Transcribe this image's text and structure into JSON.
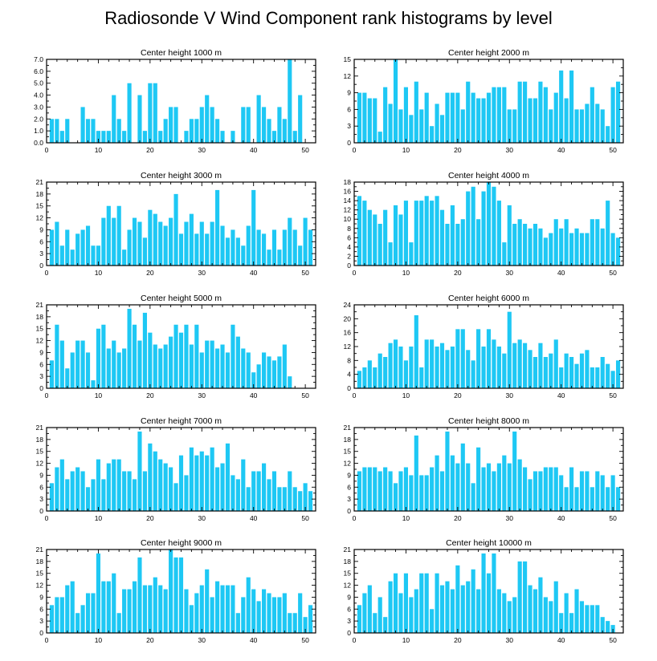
{
  "title": "Radiosonde V Wind Component rank histograms by level",
  "colors": {
    "bar": "#1ec8f4",
    "frame": "#000000",
    "background": "#ffffff"
  },
  "chart_data": [
    {
      "type": "bar",
      "title": "Center height 1000 m",
      "x": [
        1,
        2,
        3,
        4,
        5,
        6,
        7,
        8,
        9,
        10,
        11,
        12,
        13,
        14,
        15,
        16,
        17,
        18,
        19,
        20,
        21,
        22,
        23,
        24,
        25,
        26,
        27,
        28,
        29,
        30,
        31,
        32,
        33,
        34,
        35,
        36,
        37,
        38,
        39,
        40,
        41,
        42,
        43,
        44,
        45,
        46,
        47,
        48,
        49,
        50,
        51
      ],
      "values": [
        2,
        2,
        1,
        2,
        0,
        0,
        3,
        2,
        2,
        1,
        1,
        1,
        4,
        2,
        1,
        5,
        0,
        4,
        1,
        5,
        5,
        1,
        2,
        3,
        3,
        0,
        1,
        2,
        2,
        3,
        4,
        3,
        2,
        1,
        0,
        1,
        0,
        3,
        3,
        0,
        4,
        3,
        2,
        1,
        3,
        2,
        7,
        1,
        4,
        0,
        0
      ],
      "xlim": [
        0,
        52
      ],
      "ylim": [
        0,
        7
      ],
      "xticks": [
        0,
        10,
        20,
        30,
        40,
        50
      ],
      "yticks": [
        0,
        1,
        2,
        3,
        4,
        5,
        6,
        7
      ],
      "ytick_labels": [
        "0.0",
        "1.0",
        "2.0",
        "3.0",
        "4.0",
        "5.0",
        "6.0",
        "7.0"
      ]
    },
    {
      "type": "bar",
      "title": "Center height 2000 m",
      "x": [
        1,
        2,
        3,
        4,
        5,
        6,
        7,
        8,
        9,
        10,
        11,
        12,
        13,
        14,
        15,
        16,
        17,
        18,
        19,
        20,
        21,
        22,
        23,
        24,
        25,
        26,
        27,
        28,
        29,
        30,
        31,
        32,
        33,
        34,
        35,
        36,
        37,
        38,
        39,
        40,
        41,
        42,
        43,
        44,
        45,
        46,
        47,
        48,
        49,
        50,
        51
      ],
      "values": [
        9,
        9,
        8,
        8,
        2,
        10,
        7,
        15,
        6,
        10,
        5,
        11,
        6,
        9,
        3,
        7,
        5,
        9,
        9,
        9,
        6,
        11,
        9,
        8,
        8,
        9,
        10,
        10,
        10,
        6,
        6,
        11,
        11,
        8,
        8,
        11,
        10,
        6,
        9,
        13,
        8,
        13,
        6,
        6,
        7,
        10,
        7,
        6,
        3,
        10,
        11
      ],
      "xlim": [
        0,
        52
      ],
      "ylim": [
        0,
        15
      ],
      "xticks": [
        0,
        10,
        20,
        30,
        40,
        50
      ],
      "yticks": [
        0,
        3,
        6,
        9,
        12,
        15
      ],
      "ytick_labels": [
        "0",
        "3",
        "6",
        "9",
        "12",
        "15"
      ]
    },
    {
      "type": "bar",
      "title": "Center height 3000 m",
      "x": [
        1,
        2,
        3,
        4,
        5,
        6,
        7,
        8,
        9,
        10,
        11,
        12,
        13,
        14,
        15,
        16,
        17,
        18,
        19,
        20,
        21,
        22,
        23,
        24,
        25,
        26,
        27,
        28,
        29,
        30,
        31,
        32,
        33,
        34,
        35,
        36,
        37,
        38,
        39,
        40,
        41,
        42,
        43,
        44,
        45,
        46,
        47,
        48,
        49,
        50,
        51
      ],
      "values": [
        9,
        11,
        5,
        9,
        4,
        8,
        9,
        10,
        5,
        5,
        12,
        15,
        12,
        15,
        4,
        9,
        12,
        11,
        7,
        14,
        13,
        11,
        10,
        12,
        18,
        8,
        11,
        13,
        8,
        11,
        8,
        11,
        19,
        10,
        7,
        9,
        7,
        5,
        10,
        19,
        9,
        8,
        4,
        9,
        4,
        9,
        12,
        9,
        5,
        12,
        9
      ],
      "xlim": [
        0,
        52
      ],
      "ylim": [
        0,
        21
      ],
      "xticks": [
        0,
        10,
        20,
        30,
        40,
        50
      ],
      "yticks": [
        0,
        3,
        6,
        9,
        12,
        15,
        18,
        21
      ],
      "ytick_labels": [
        "0",
        "3",
        "6",
        "9",
        "12",
        "15",
        "18",
        "21"
      ]
    },
    {
      "type": "bar",
      "title": "Center height 4000 m",
      "x": [
        1,
        2,
        3,
        4,
        5,
        6,
        7,
        8,
        9,
        10,
        11,
        12,
        13,
        14,
        15,
        16,
        17,
        18,
        19,
        20,
        21,
        22,
        23,
        24,
        25,
        26,
        27,
        28,
        29,
        30,
        31,
        32,
        33,
        34,
        35,
        36,
        37,
        38,
        39,
        40,
        41,
        42,
        43,
        44,
        45,
        46,
        47,
        48,
        49,
        50,
        51
      ],
      "values": [
        15,
        14,
        12,
        11,
        9,
        12,
        5,
        13,
        11,
        14,
        5,
        14,
        14,
        15,
        14,
        15,
        12,
        9,
        13,
        9,
        10,
        16,
        17,
        10,
        16,
        18,
        17,
        14,
        5,
        13,
        9,
        10,
        9,
        8,
        9,
        8,
        6,
        7,
        10,
        8,
        10,
        7,
        8,
        7,
        7,
        10,
        10,
        8,
        14,
        7,
        6
      ],
      "xlim": [
        0,
        52
      ],
      "ylim": [
        0,
        18
      ],
      "xticks": [
        0,
        10,
        20,
        30,
        40,
        50
      ],
      "yticks": [
        0,
        2,
        4,
        6,
        8,
        10,
        12,
        14,
        16,
        18
      ],
      "ytick_labels": [
        "0",
        "2",
        "4",
        "6",
        "8",
        "10",
        "12",
        "14",
        "16",
        "18"
      ]
    },
    {
      "type": "bar",
      "title": "Center height 5000 m",
      "x": [
        1,
        2,
        3,
        4,
        5,
        6,
        7,
        8,
        9,
        10,
        11,
        12,
        13,
        14,
        15,
        16,
        17,
        18,
        19,
        20,
        21,
        22,
        23,
        24,
        25,
        26,
        27,
        28,
        29,
        30,
        31,
        32,
        33,
        34,
        35,
        36,
        37,
        38,
        39,
        40,
        41,
        42,
        43,
        44,
        45,
        46,
        47,
        48,
        49,
        50,
        51
      ],
      "values": [
        7,
        16,
        12,
        5,
        9,
        12,
        12,
        9,
        2,
        15,
        16,
        10,
        12,
        9,
        10,
        20,
        16,
        12,
        19,
        14,
        11,
        10,
        11,
        13,
        16,
        14,
        16,
        11,
        16,
        9,
        12,
        12,
        10,
        11,
        9,
        16,
        13,
        10,
        9,
        4,
        6,
        9,
        8,
        7,
        8,
        11,
        3,
        0,
        0,
        0,
        0
      ],
      "xlim": [
        0,
        52
      ],
      "ylim": [
        0,
        21
      ],
      "xticks": [
        0,
        10,
        20,
        30,
        40,
        50
      ],
      "yticks": [
        0,
        3,
        6,
        9,
        12,
        15,
        18,
        21
      ],
      "ytick_labels": [
        "0",
        "3",
        "6",
        "9",
        "12",
        "15",
        "18",
        "21"
      ]
    },
    {
      "type": "bar",
      "title": "Center height 6000 m",
      "x": [
        1,
        2,
        3,
        4,
        5,
        6,
        7,
        8,
        9,
        10,
        11,
        12,
        13,
        14,
        15,
        16,
        17,
        18,
        19,
        20,
        21,
        22,
        23,
        24,
        25,
        26,
        27,
        28,
        29,
        30,
        31,
        32,
        33,
        34,
        35,
        36,
        37,
        38,
        39,
        40,
        41,
        42,
        43,
        44,
        45,
        46,
        47,
        48,
        49,
        50,
        51
      ],
      "values": [
        5,
        6,
        8,
        6,
        10,
        9,
        13,
        14,
        12,
        8,
        12,
        21,
        6,
        14,
        14,
        12,
        13,
        11,
        12,
        17,
        17,
        11,
        8,
        17,
        12,
        17,
        14,
        12,
        10,
        22,
        13,
        14,
        13,
        11,
        9,
        13,
        9,
        10,
        14,
        6,
        10,
        9,
        7,
        10,
        11,
        6,
        6,
        9,
        7,
        5,
        8
      ],
      "xlim": [
        0,
        52
      ],
      "ylim": [
        0,
        24
      ],
      "xticks": [
        0,
        10,
        20,
        30,
        40,
        50
      ],
      "yticks": [
        0,
        4,
        8,
        12,
        16,
        20,
        24
      ],
      "ytick_labels": [
        "0",
        "4",
        "8",
        "12",
        "16",
        "20",
        "24"
      ]
    },
    {
      "type": "bar",
      "title": "Center height 7000 m",
      "x": [
        1,
        2,
        3,
        4,
        5,
        6,
        7,
        8,
        9,
        10,
        11,
        12,
        13,
        14,
        15,
        16,
        17,
        18,
        19,
        20,
        21,
        22,
        23,
        24,
        25,
        26,
        27,
        28,
        29,
        30,
        31,
        32,
        33,
        34,
        35,
        36,
        37,
        38,
        39,
        40,
        41,
        42,
        43,
        44,
        45,
        46,
        47,
        48,
        49,
        50,
        51
      ],
      "values": [
        7,
        11,
        13,
        8,
        10,
        11,
        10,
        6,
        8,
        13,
        8,
        12,
        13,
        13,
        10,
        10,
        8,
        20,
        10,
        17,
        15,
        13,
        12,
        11,
        7,
        14,
        9,
        16,
        14,
        15,
        14,
        16,
        11,
        12,
        17,
        9,
        8,
        13,
        6,
        10,
        10,
        12,
        8,
        10,
        6,
        6,
        10,
        6,
        5,
        7,
        5
      ],
      "xlim": [
        0,
        52
      ],
      "ylim": [
        0,
        21
      ],
      "xticks": [
        0,
        10,
        20,
        30,
        40,
        50
      ],
      "yticks": [
        0,
        3,
        6,
        9,
        12,
        15,
        18,
        21
      ],
      "ytick_labels": [
        "0",
        "3",
        "6",
        "9",
        "12",
        "15",
        "18",
        "21"
      ]
    },
    {
      "type": "bar",
      "title": "Center height 8000 m",
      "x": [
        1,
        2,
        3,
        4,
        5,
        6,
        7,
        8,
        9,
        10,
        11,
        12,
        13,
        14,
        15,
        16,
        17,
        18,
        19,
        20,
        21,
        22,
        23,
        24,
        25,
        26,
        27,
        28,
        29,
        30,
        31,
        32,
        33,
        34,
        35,
        36,
        37,
        38,
        39,
        40,
        41,
        42,
        43,
        44,
        45,
        46,
        47,
        48,
        49,
        50,
        51
      ],
      "values": [
        10,
        11,
        11,
        11,
        10,
        11,
        10,
        7,
        10,
        11,
        9,
        19,
        9,
        9,
        11,
        14,
        10,
        20,
        14,
        12,
        17,
        12,
        7,
        16,
        11,
        12,
        10,
        12,
        14,
        12,
        20,
        13,
        11,
        8,
        10,
        10,
        11,
        11,
        11,
        9,
        6,
        11,
        6,
        10,
        10,
        6,
        10,
        9,
        6,
        9,
        6
      ],
      "xlim": [
        0,
        52
      ],
      "ylim": [
        0,
        21
      ],
      "xticks": [
        0,
        10,
        20,
        30,
        40,
        50
      ],
      "yticks": [
        0,
        3,
        6,
        9,
        12,
        15,
        18,
        21
      ],
      "ytick_labels": [
        "0",
        "3",
        "6",
        "9",
        "12",
        "15",
        "18",
        "21"
      ]
    },
    {
      "type": "bar",
      "title": "Center height 9000 m",
      "x": [
        1,
        2,
        3,
        4,
        5,
        6,
        7,
        8,
        9,
        10,
        11,
        12,
        13,
        14,
        15,
        16,
        17,
        18,
        19,
        20,
        21,
        22,
        23,
        24,
        25,
        26,
        27,
        28,
        29,
        30,
        31,
        32,
        33,
        34,
        35,
        36,
        37,
        38,
        39,
        40,
        41,
        42,
        43,
        44,
        45,
        46,
        47,
        48,
        49,
        50,
        51
      ],
      "values": [
        7,
        9,
        9,
        12,
        13,
        5,
        7,
        10,
        10,
        20,
        13,
        13,
        15,
        5,
        11,
        11,
        13,
        19,
        12,
        12,
        14,
        12,
        11,
        21,
        19,
        19,
        11,
        7,
        10,
        12,
        16,
        9,
        13,
        12,
        12,
        12,
        5,
        9,
        14,
        11,
        8,
        11,
        10,
        9,
        9,
        10,
        5,
        5,
        10,
        4,
        7
      ],
      "xlim": [
        0,
        52
      ],
      "ylim": [
        0,
        21
      ],
      "xticks": [
        0,
        10,
        20,
        30,
        40,
        50
      ],
      "yticks": [
        0,
        3,
        6,
        9,
        12,
        15,
        18,
        21
      ],
      "ytick_labels": [
        "0",
        "3",
        "6",
        "9",
        "12",
        "15",
        "18",
        "21"
      ]
    },
    {
      "type": "bar",
      "title": "Center height 10000 m",
      "x": [
        1,
        2,
        3,
        4,
        5,
        6,
        7,
        8,
        9,
        10,
        11,
        12,
        13,
        14,
        15,
        16,
        17,
        18,
        19,
        20,
        21,
        22,
        23,
        24,
        25,
        26,
        27,
        28,
        29,
        30,
        31,
        32,
        33,
        34,
        35,
        36,
        37,
        38,
        39,
        40,
        41,
        42,
        43,
        44,
        45,
        46,
        47,
        48,
        49,
        50,
        51
      ],
      "values": [
        7,
        10,
        12,
        5,
        9,
        4,
        13,
        15,
        10,
        15,
        9,
        11,
        15,
        15,
        6,
        15,
        12,
        13,
        11,
        17,
        12,
        13,
        16,
        11,
        20,
        15,
        20,
        11,
        10,
        8,
        9,
        18,
        18,
        12,
        11,
        14,
        9,
        8,
        13,
        5,
        10,
        5,
        11,
        8,
        7,
        7,
        7,
        4,
        3,
        2,
        0
      ],
      "xlim": [
        0,
        52
      ],
      "ylim": [
        0,
        21
      ],
      "xticks": [
        0,
        10,
        20,
        30,
        40,
        50
      ],
      "yticks": [
        0,
        3,
        6,
        9,
        12,
        15,
        18,
        21
      ],
      "ytick_labels": [
        "0",
        "3",
        "6",
        "9",
        "12",
        "15",
        "18",
        "21"
      ]
    }
  ]
}
